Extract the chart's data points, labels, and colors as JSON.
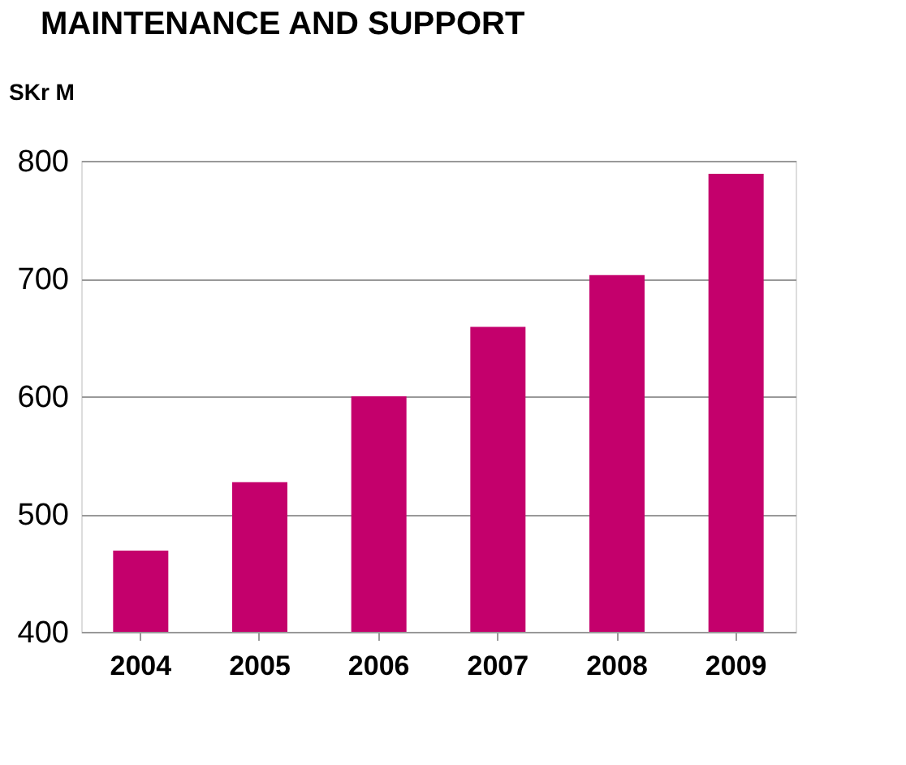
{
  "chart_data": {
    "type": "bar",
    "title": "MAINTENANCE AND SUPPORT",
    "ylabel": "SKr M",
    "categories": [
      "2004",
      "2005",
      "2006",
      "2007",
      "2008",
      "2009"
    ],
    "values": [
      469,
      527,
      600,
      659,
      703,
      789
    ],
    "color": "#c4006c",
    "ylim": [
      400,
      800
    ],
    "yticks": [
      400,
      500,
      600,
      700,
      800
    ],
    "grid": "y"
  }
}
